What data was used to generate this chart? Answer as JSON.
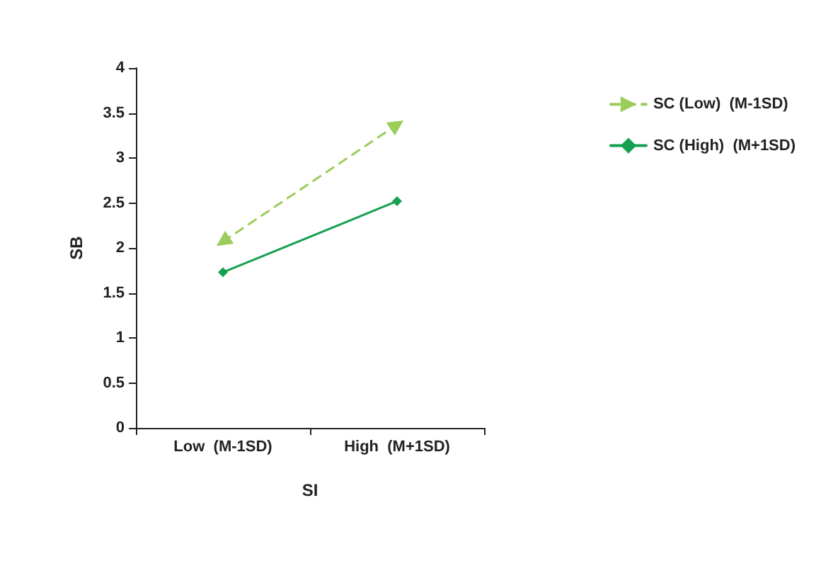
{
  "chart_data": {
    "type": "line",
    "xlabel": "SI",
    "ylabel": "SB",
    "categories": [
      "Low  (M-1SD)",
      "High  (M+1SD)"
    ],
    "series": [
      {
        "name": "SC (Low)  (M-1SD)",
        "color": "#9ccc5a",
        "values": [
          2.07,
          3.37
        ],
        "marker": "triangle",
        "line_style": "dashed"
      },
      {
        "name": "SC (High)  (M+1SD)",
        "color": "#14a050",
        "values": [
          1.73,
          2.52
        ],
        "marker": "diamond",
        "line_style": "solid"
      }
    ],
    "ylim": [
      0,
      4
    ],
    "yticks": [
      0,
      0.5,
      1,
      1.5,
      2,
      2.5,
      3,
      3.5,
      4
    ],
    "grid": false,
    "legend": "right"
  }
}
